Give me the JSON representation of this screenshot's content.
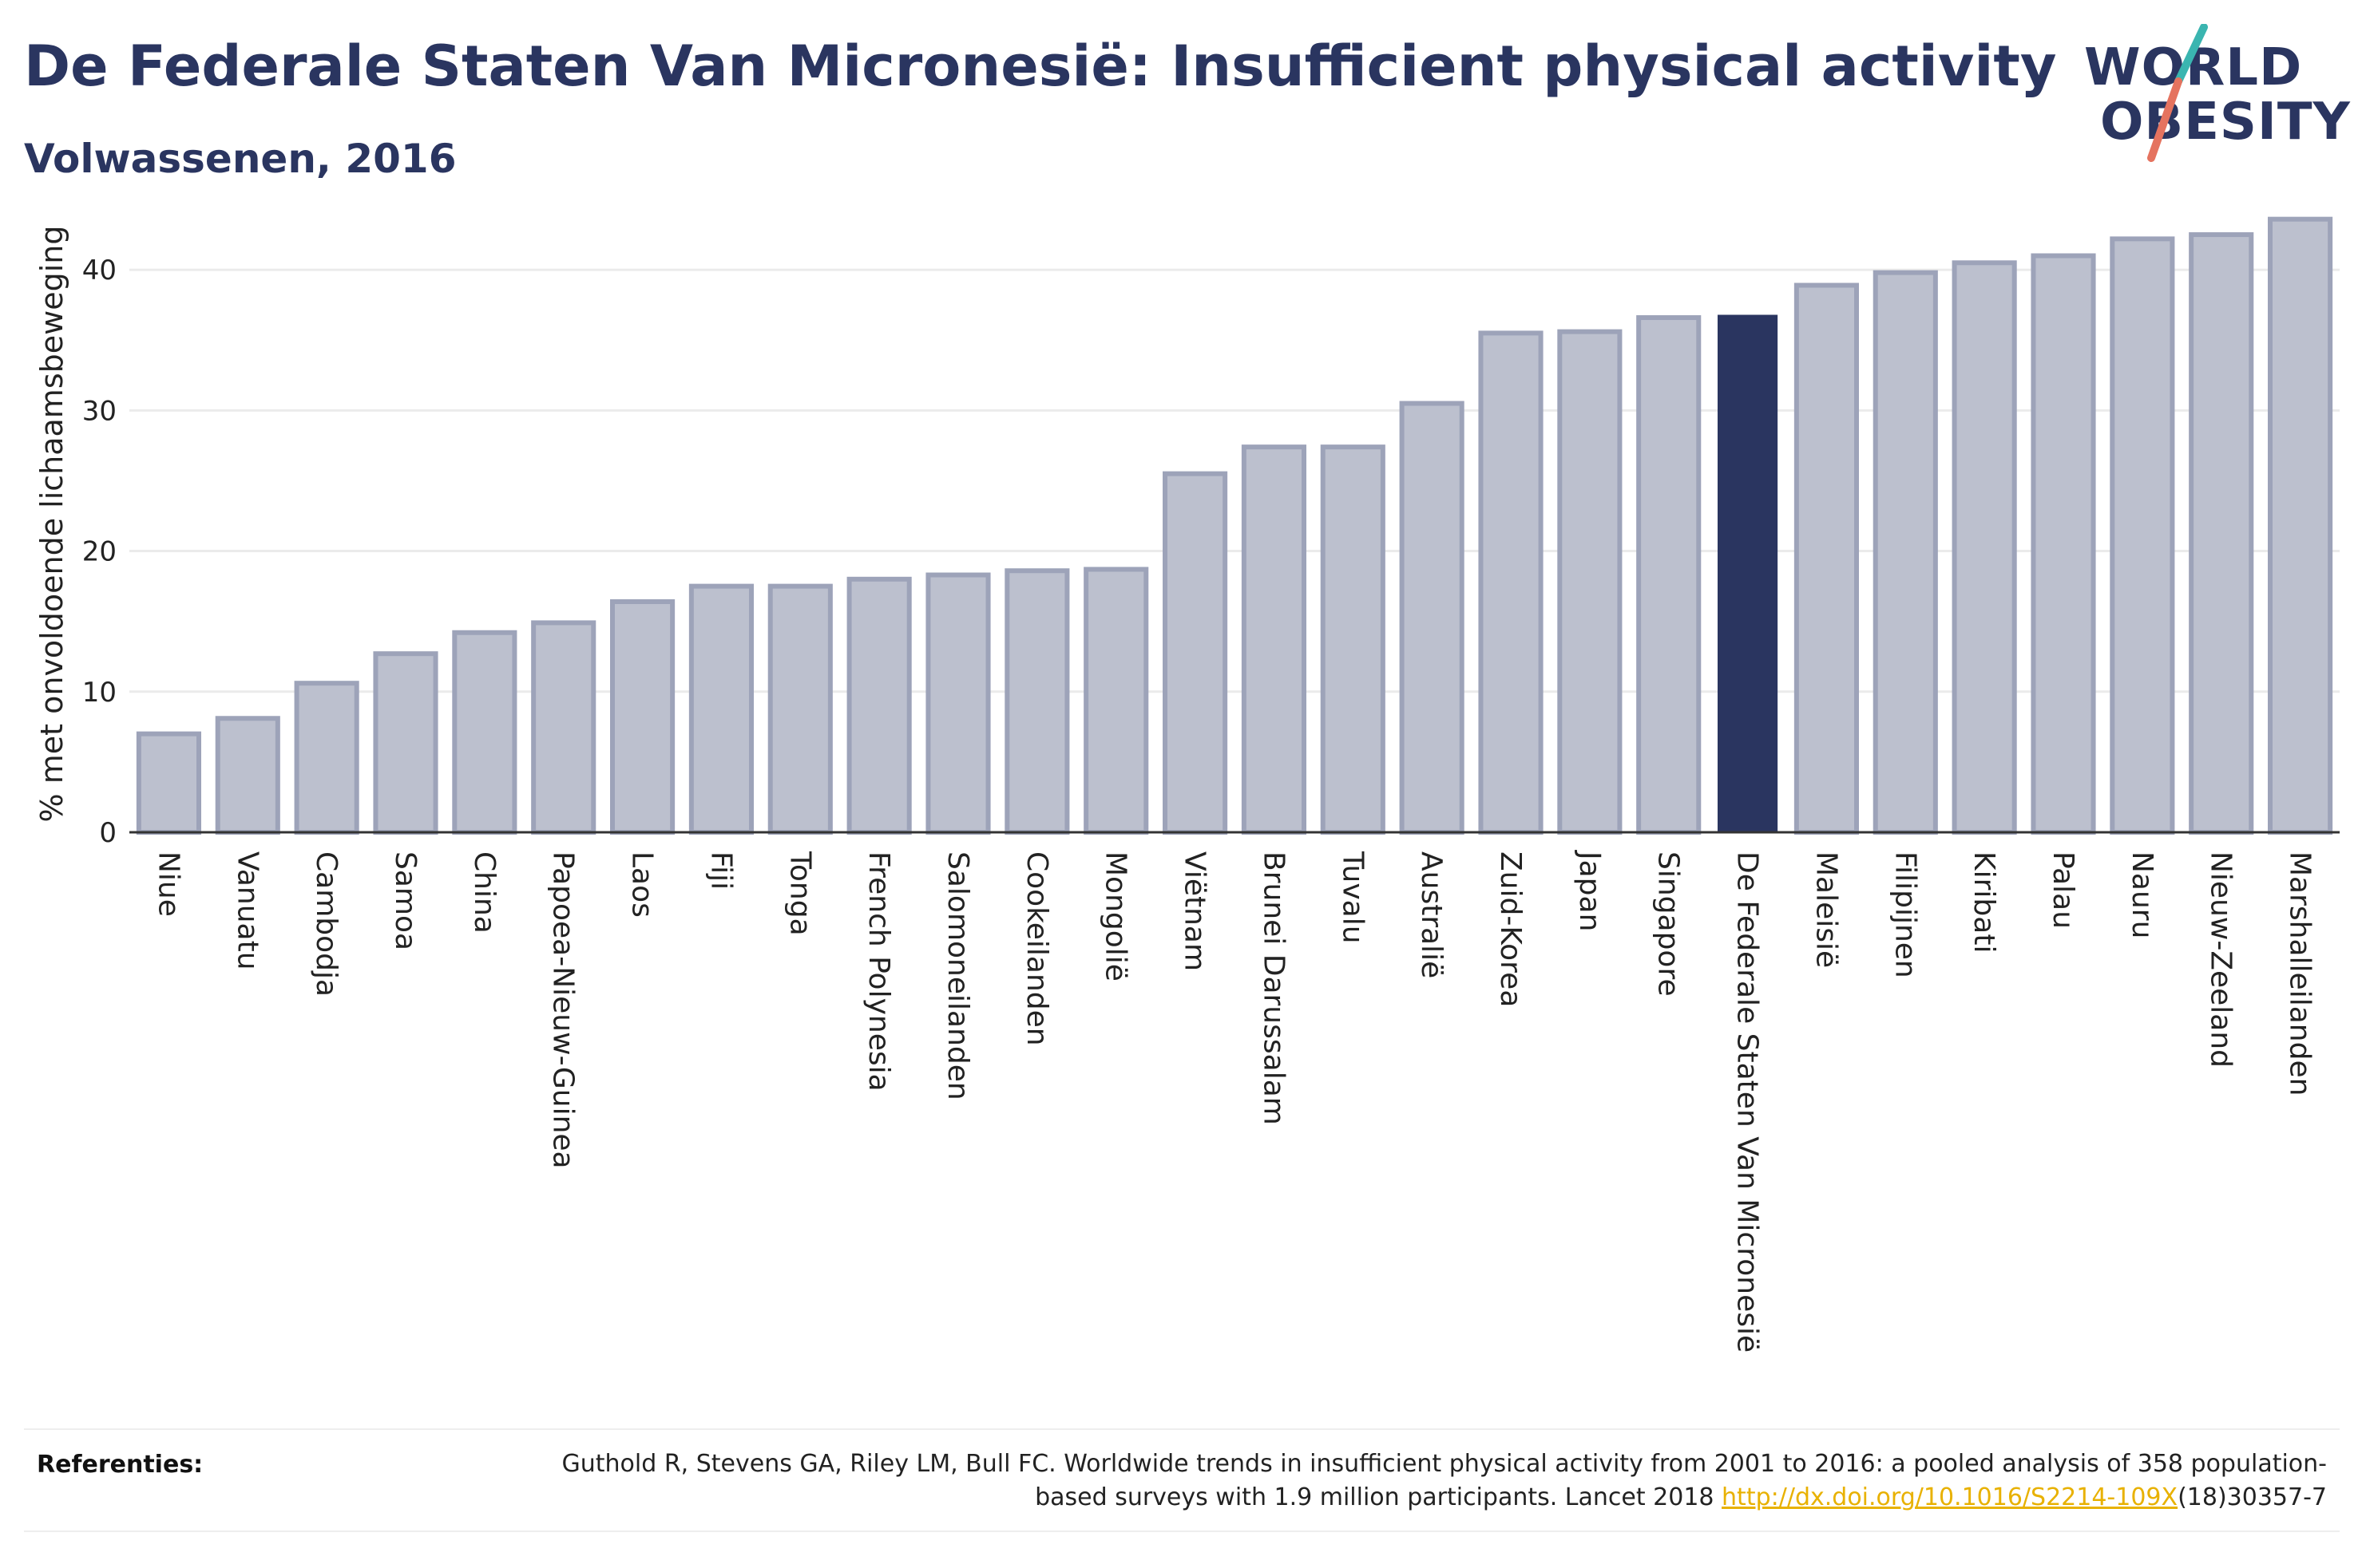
{
  "header": {
    "title": "De Federale Staten Van Micronesië: Insufficient physical activity",
    "subtitle": "Volwassenen, 2016"
  },
  "logo": {
    "line1": "WORLD",
    "line2": "OBESITY",
    "accent_colors": [
      "#3ab5b0",
      "#e5735f"
    ]
  },
  "references": {
    "label": "Referenties:",
    "text": "Guthold R, Stevens GA, Riley LM, Bull FC. Worldwide trends in insufficient physical activity from 2001 to 2016: a pooled analysis of 358 population-based surveys with 1.9 million participants. Lancet 2018 ",
    "link_text": "http://dx.doi.org/10.1016/S2214-109X",
    "suffix": "(18)30357-7"
  },
  "colors": {
    "bar": "#bcc0ce",
    "bar_border": "#9da3b9",
    "highlight": "#2a3560",
    "grid": "#ebebeb",
    "axis": "#333333"
  },
  "chart_data": {
    "type": "bar",
    "title": "De Federale Staten Van Micronesië: Insufficient physical activity",
    "subtitle": "Volwassenen, 2016",
    "xlabel": "",
    "ylabel": "% met onvoldoende lichaamsbeweging",
    "ylim": [
      0,
      45
    ],
    "yticks": [
      0,
      10,
      20,
      30,
      40
    ],
    "grid": true,
    "highlight": "De Federale Staten Van Micronesië",
    "categories": [
      "Niue",
      "Vanuatu",
      "Cambodja",
      "Samoa",
      "China",
      "Papoea-Nieuw-Guinea",
      "Laos",
      "Fiji",
      "Tonga",
      "French Polynesia",
      "Salomoneilanden",
      "Cookeilanden",
      "Mongolië",
      "Viëtnam",
      "Brunei Darussalam",
      "Tuvalu",
      "Australië",
      "Zuid-Korea",
      "Japan",
      "Singapore",
      "De Federale Staten Van Micronesië",
      "Maleisië",
      "Filipijnen",
      "Kiribati",
      "Palau",
      "Nauru",
      "Nieuw-Zeeland",
      "Marshalleilanden"
    ],
    "values": [
      7.0,
      8.1,
      10.6,
      12.7,
      14.2,
      14.9,
      16.4,
      17.5,
      17.5,
      18.0,
      18.3,
      18.6,
      18.7,
      25.5,
      27.4,
      27.4,
      30.5,
      35.5,
      35.6,
      36.6,
      36.8,
      38.9,
      39.8,
      40.5,
      41.0,
      42.2,
      42.5,
      43.6
    ]
  }
}
